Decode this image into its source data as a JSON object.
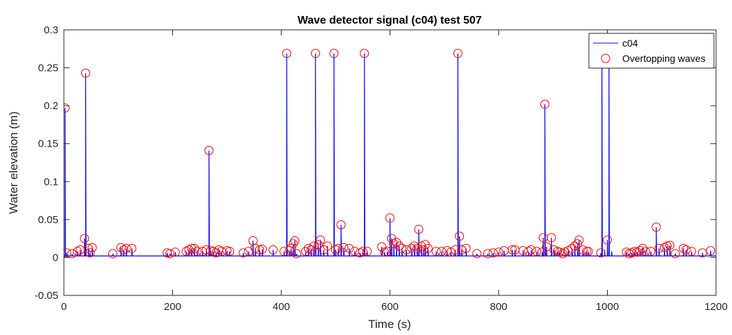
{
  "chart_data": {
    "type": "line",
    "title": "Wave detector signal (c04) test 507",
    "xlabel": "Time (s)",
    "ylabel": "Water elevation (m)",
    "xlim": [
      0,
      1200
    ],
    "ylim": [
      -0.05,
      0.3
    ],
    "x_ticks": [
      0,
      200,
      400,
      600,
      800,
      1000,
      1200
    ],
    "y_ticks": [
      -0.05,
      0,
      0.05,
      0.1,
      0.15,
      0.2,
      0.25,
      0.3
    ],
    "x_tick_labels": [
      "0",
      "200",
      "400",
      "600",
      "800",
      "1000",
      "1200"
    ],
    "y_tick_labels": [
      "-0.05",
      "0",
      "0.05",
      "0.1",
      "0.15",
      "0.2",
      "0.25",
      "0.3"
    ],
    "grid": false,
    "legend": {
      "location": "top-right"
    },
    "series": [
      {
        "name": "c04",
        "type": "line",
        "color": "#0000ff",
        "baseline": 0.002,
        "spikes": [
          [
            2,
            0.197
          ],
          [
            5,
            0.006
          ],
          [
            15,
            0.005
          ],
          [
            25,
            0.008
          ],
          [
            30,
            0.01
          ],
          [
            38,
            0.025
          ],
          [
            40,
            0.243
          ],
          [
            45,
            0.012
          ],
          [
            48,
            0.006
          ],
          [
            52,
            0.013
          ],
          [
            90,
            0.005
          ],
          [
            105,
            0.013
          ],
          [
            110,
            0.01
          ],
          [
            115,
            0.012
          ],
          [
            125,
            0.012
          ],
          [
            190,
            0.006
          ],
          [
            195,
            0.005
          ],
          [
            205,
            0.007
          ],
          [
            225,
            0.008
          ],
          [
            230,
            0.01
          ],
          [
            235,
            0.012
          ],
          [
            240,
            0.012
          ],
          [
            245,
            0.008
          ],
          [
            255,
            0.008
          ],
          [
            262,
            0.01
          ],
          [
            267,
            0.141
          ],
          [
            270,
            0.009
          ],
          [
            275,
            0.008
          ],
          [
            280,
            0.006
          ],
          [
            285,
            0.01
          ],
          [
            290,
            0.008
          ],
          [
            300,
            0.009
          ],
          [
            305,
            0.008
          ],
          [
            330,
            0.006
          ],
          [
            340,
            0.008
          ],
          [
            348,
            0.022
          ],
          [
            352,
            0.012
          ],
          [
            360,
            0.01
          ],
          [
            365,
            0.011
          ],
          [
            385,
            0.01
          ],
          [
            405,
            0.008
          ],
          [
            410,
            0.269
          ],
          [
            415,
            0.009
          ],
          [
            418,
            0.012
          ],
          [
            422,
            0.018
          ],
          [
            425,
            0.022
          ],
          [
            428,
            0.005
          ],
          [
            445,
            0.008
          ],
          [
            450,
            0.012
          ],
          [
            455,
            0.01
          ],
          [
            460,
            0.015
          ],
          [
            463,
            0.269
          ],
          [
            468,
            0.017
          ],
          [
            472,
            0.023
          ],
          [
            478,
            0.01
          ],
          [
            485,
            0.015
          ],
          [
            497,
            0.269
          ],
          [
            500,
            0.01
          ],
          [
            505,
            0.012
          ],
          [
            510,
            0.043
          ],
          [
            515,
            0.013
          ],
          [
            525,
            0.012
          ],
          [
            535,
            0.008
          ],
          [
            545,
            0.006
          ],
          [
            550,
            0.008
          ],
          [
            553,
            0.269
          ],
          [
            558,
            0.008
          ],
          [
            585,
            0.014
          ],
          [
            590,
            0.007
          ],
          [
            595,
            0.008
          ],
          [
            600,
            0.052
          ],
          [
            603,
            0.025
          ],
          [
            607,
            0.018
          ],
          [
            612,
            0.02
          ],
          [
            617,
            0.015
          ],
          [
            622,
            0.012
          ],
          [
            630,
            0.01
          ],
          [
            640,
            0.012
          ],
          [
            645,
            0.015
          ],
          [
            650,
            0.012
          ],
          [
            653,
            0.037
          ],
          [
            658,
            0.015
          ],
          [
            662,
            0.01
          ],
          [
            665,
            0.017
          ],
          [
            670,
            0.012
          ],
          [
            685,
            0.008
          ],
          [
            695,
            0.008
          ],
          [
            705,
            0.009
          ],
          [
            712,
            0.007
          ],
          [
            720,
            0.01
          ],
          [
            725,
            0.269
          ],
          [
            728,
            0.028
          ],
          [
            732,
            0.01
          ],
          [
            740,
            0.012
          ],
          [
            760,
            0.005
          ],
          [
            780,
            0.005
          ],
          [
            790,
            0.006
          ],
          [
            800,
            0.007
          ],
          [
            810,
            0.009
          ],
          [
            825,
            0.01
          ],
          [
            830,
            0.01
          ],
          [
            845,
            0.009
          ],
          [
            855,
            0.008
          ],
          [
            860,
            0.01
          ],
          [
            870,
            0.008
          ],
          [
            880,
            0.007
          ],
          [
            882,
            0.026
          ],
          [
            885,
            0.202
          ],
          [
            888,
            0.014
          ],
          [
            897,
            0.026
          ],
          [
            902,
            0.01
          ],
          [
            908,
            0.008
          ],
          [
            912,
            0.007
          ],
          [
            918,
            0.005
          ],
          [
            922,
            0.007
          ],
          [
            928,
            0.009
          ],
          [
            935,
            0.012
          ],
          [
            940,
            0.015
          ],
          [
            945,
            0.018
          ],
          [
            948,
            0.023
          ],
          [
            955,
            0.01
          ],
          [
            962,
            0.008
          ],
          [
            965,
            0.008
          ],
          [
            988,
            0.006
          ],
          [
            990,
            0.269
          ],
          [
            995,
            0.01
          ],
          [
            1000,
            0.023
          ],
          [
            1003,
            0.269
          ],
          [
            1008,
            0.008
          ],
          [
            1035,
            0.007
          ],
          [
            1040,
            0.005
          ],
          [
            1045,
            0.006
          ],
          [
            1050,
            0.008
          ],
          [
            1055,
            0.007
          ],
          [
            1060,
            0.009
          ],
          [
            1065,
            0.012
          ],
          [
            1070,
            0.008
          ],
          [
            1080,
            0.008
          ],
          [
            1090,
            0.04
          ],
          [
            1095,
            0.012
          ],
          [
            1105,
            0.013
          ],
          [
            1110,
            0.015
          ],
          [
            1115,
            0.016
          ],
          [
            1125,
            0.005
          ],
          [
            1140,
            0.012
          ],
          [
            1145,
            0.01
          ],
          [
            1155,
            0.008
          ],
          [
            1175,
            0.006
          ],
          [
            1190,
            0.009
          ]
        ]
      },
      {
        "name": "Overtopping waves",
        "type": "scatter",
        "marker": "circle",
        "color": "#ff0000",
        "points": [
          [
            2,
            0.197
          ],
          [
            5,
            0.006
          ],
          [
            15,
            0.005
          ],
          [
            25,
            0.008
          ],
          [
            30,
            0.01
          ],
          [
            38,
            0.025
          ],
          [
            40,
            0.243
          ],
          [
            45,
            0.012
          ],
          [
            48,
            0.006
          ],
          [
            52,
            0.013
          ],
          [
            90,
            0.005
          ],
          [
            105,
            0.013
          ],
          [
            110,
            0.01
          ],
          [
            115,
            0.012
          ],
          [
            125,
            0.012
          ],
          [
            190,
            0.006
          ],
          [
            195,
            0.005
          ],
          [
            205,
            0.007
          ],
          [
            225,
            0.008
          ],
          [
            230,
            0.01
          ],
          [
            235,
            0.012
          ],
          [
            240,
            0.012
          ],
          [
            245,
            0.008
          ],
          [
            255,
            0.008
          ],
          [
            262,
            0.01
          ],
          [
            267,
            0.141
          ],
          [
            270,
            0.009
          ],
          [
            275,
            0.008
          ],
          [
            280,
            0.006
          ],
          [
            285,
            0.01
          ],
          [
            290,
            0.008
          ],
          [
            300,
            0.009
          ],
          [
            305,
            0.008
          ],
          [
            330,
            0.006
          ],
          [
            340,
            0.008
          ],
          [
            348,
            0.022
          ],
          [
            352,
            0.012
          ],
          [
            360,
            0.01
          ],
          [
            365,
            0.011
          ],
          [
            385,
            0.01
          ],
          [
            405,
            0.008
          ],
          [
            410,
            0.269
          ],
          [
            415,
            0.009
          ],
          [
            418,
            0.012
          ],
          [
            422,
            0.018
          ],
          [
            425,
            0.022
          ],
          [
            428,
            0.005
          ],
          [
            445,
            0.008
          ],
          [
            450,
            0.012
          ],
          [
            455,
            0.01
          ],
          [
            460,
            0.015
          ],
          [
            463,
            0.269
          ],
          [
            468,
            0.017
          ],
          [
            472,
            0.023
          ],
          [
            478,
            0.01
          ],
          [
            485,
            0.015
          ],
          [
            497,
            0.269
          ],
          [
            500,
            0.01
          ],
          [
            505,
            0.012
          ],
          [
            510,
            0.043
          ],
          [
            515,
            0.013
          ],
          [
            525,
            0.012
          ],
          [
            535,
            0.008
          ],
          [
            545,
            0.006
          ],
          [
            550,
            0.008
          ],
          [
            553,
            0.269
          ],
          [
            558,
            0.008
          ],
          [
            585,
            0.014
          ],
          [
            590,
            0.007
          ],
          [
            595,
            0.008
          ],
          [
            600,
            0.052
          ],
          [
            603,
            0.025
          ],
          [
            607,
            0.018
          ],
          [
            612,
            0.02
          ],
          [
            617,
            0.015
          ],
          [
            622,
            0.012
          ],
          [
            630,
            0.01
          ],
          [
            640,
            0.012
          ],
          [
            645,
            0.015
          ],
          [
            650,
            0.012
          ],
          [
            653,
            0.037
          ],
          [
            658,
            0.015
          ],
          [
            662,
            0.01
          ],
          [
            665,
            0.017
          ],
          [
            670,
            0.012
          ],
          [
            685,
            0.008
          ],
          [
            695,
            0.008
          ],
          [
            705,
            0.009
          ],
          [
            712,
            0.007
          ],
          [
            720,
            0.01
          ],
          [
            725,
            0.269
          ],
          [
            728,
            0.028
          ],
          [
            732,
            0.01
          ],
          [
            740,
            0.012
          ],
          [
            760,
            0.005
          ],
          [
            780,
            0.005
          ],
          [
            790,
            0.006
          ],
          [
            800,
            0.007
          ],
          [
            810,
            0.009
          ],
          [
            825,
            0.01
          ],
          [
            830,
            0.01
          ],
          [
            845,
            0.009
          ],
          [
            855,
            0.008
          ],
          [
            860,
            0.01
          ],
          [
            870,
            0.008
          ],
          [
            880,
            0.007
          ],
          [
            882,
            0.026
          ],
          [
            885,
            0.202
          ],
          [
            888,
            0.014
          ],
          [
            897,
            0.026
          ],
          [
            902,
            0.01
          ],
          [
            908,
            0.008
          ],
          [
            912,
            0.007
          ],
          [
            918,
            0.005
          ],
          [
            922,
            0.007
          ],
          [
            928,
            0.009
          ],
          [
            935,
            0.012
          ],
          [
            940,
            0.015
          ],
          [
            945,
            0.018
          ],
          [
            948,
            0.023
          ],
          [
            955,
            0.01
          ],
          [
            962,
            0.008
          ],
          [
            965,
            0.008
          ],
          [
            988,
            0.006
          ],
          [
            1000,
            0.023
          ],
          [
            1035,
            0.007
          ],
          [
            1040,
            0.005
          ],
          [
            1045,
            0.006
          ],
          [
            1050,
            0.008
          ],
          [
            1055,
            0.007
          ],
          [
            1060,
            0.009
          ],
          [
            1065,
            0.012
          ],
          [
            1070,
            0.008
          ],
          [
            1080,
            0.008
          ],
          [
            1090,
            0.04
          ],
          [
            1095,
            0.012
          ],
          [
            1105,
            0.013
          ],
          [
            1110,
            0.015
          ],
          [
            1115,
            0.016
          ],
          [
            1125,
            0.005
          ],
          [
            1140,
            0.012
          ],
          [
            1145,
            0.01
          ],
          [
            1155,
            0.008
          ],
          [
            1175,
            0.006
          ],
          [
            1190,
            0.009
          ]
        ]
      }
    ]
  }
}
